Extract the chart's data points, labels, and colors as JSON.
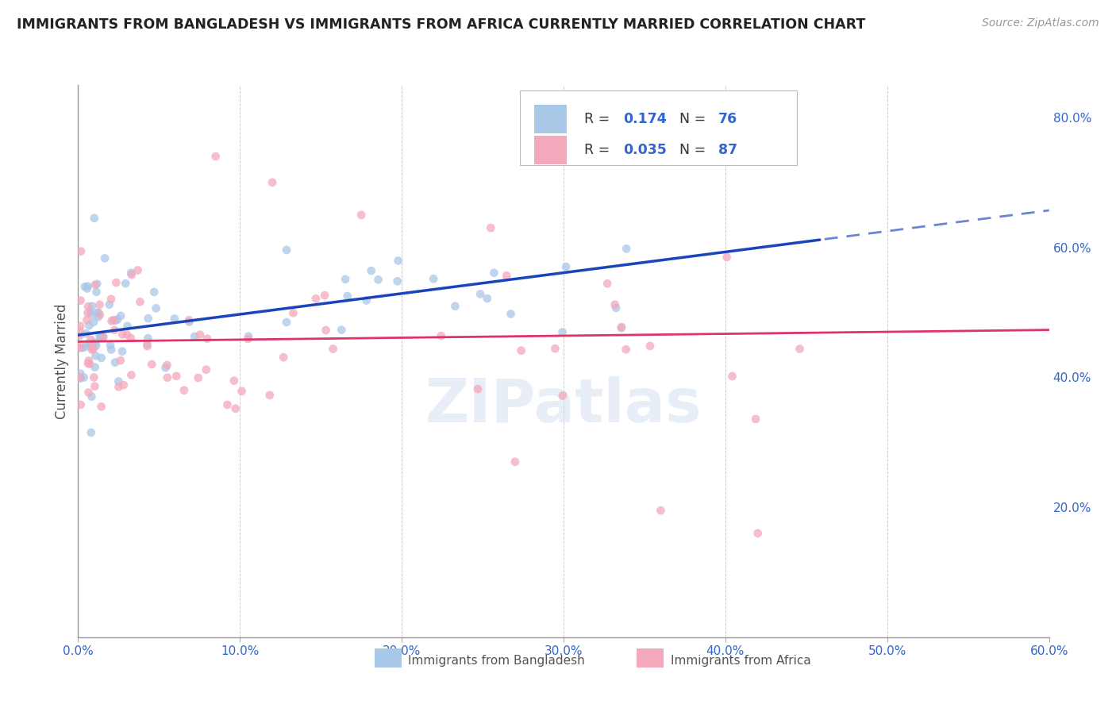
{
  "title": "IMMIGRANTS FROM BANGLADESH VS IMMIGRANTS FROM AFRICA CURRENTLY MARRIED CORRELATION CHART",
  "source_text": "Source: ZipAtlas.com",
  "ylabel": "Currently Married",
  "color_bangladesh": "#a8c8e8",
  "color_africa": "#f4a8bc",
  "color_trend_bangladesh": "#1a44bb",
  "color_trend_africa": "#dd3366",
  "background_color": "#ffffff",
  "grid_color": "#cccccc",
  "xlim": [
    0.0,
    0.6
  ],
  "ylim": [
    0.0,
    0.85
  ],
  "xticks": [
    0.0,
    0.1,
    0.2,
    0.3,
    0.4,
    0.5,
    0.6
  ],
  "yticks_right": [
    0.2,
    0.4,
    0.6,
    0.8
  ],
  "legend_blue_text": "R =  0.174   N = 76",
  "legend_pink_text": "R = 0.035   N = 87"
}
